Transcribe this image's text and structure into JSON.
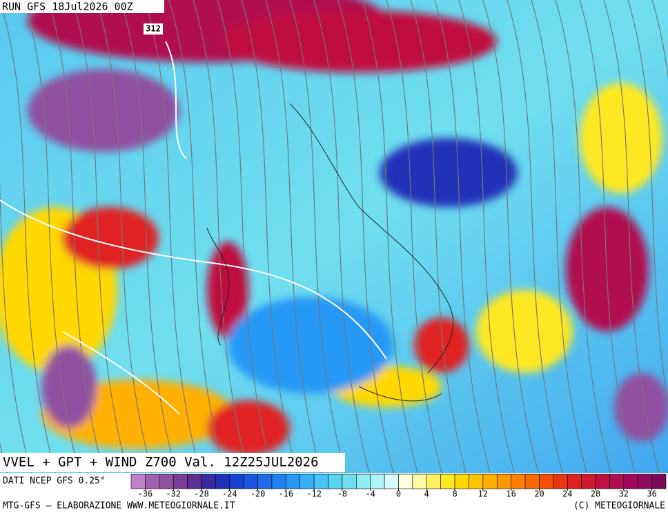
{
  "header": {
    "run": "RUN GFS 18Jul2026 00Z"
  },
  "map": {
    "contour_label": "312"
  },
  "footer": {
    "title": "VVEL + GPT + WIND Z700 Val. 12Z25JUL2026",
    "source": "DATI NCEP GFS 0.25°",
    "left_credit": "MTG-GFS – ELABORAZIONE WWW.METEOGIORNALE.IT",
    "right_credit": "(C) METEOGIORNALE"
  },
  "colorbar": {
    "range": [
      -38,
      38
    ],
    "colors": [
      "#c080c8",
      "#a060b0",
      "#9050a0",
      "#7a3d96",
      "#5a3090",
      "#3a2aa0",
      "#2030b8",
      "#1a40d0",
      "#1a55e0",
      "#1e6ae8",
      "#2080f0",
      "#2898f5",
      "#38b0f8",
      "#48c4f8",
      "#58d4f0",
      "#70e0f0",
      "#90ecf4",
      "#b0f4f8",
      "#d8fcfc",
      "#ffffe0",
      "#fff8a0",
      "#fff060",
      "#ffe820",
      "#ffd800",
      "#ffc400",
      "#ffb000",
      "#ff9800",
      "#ff8000",
      "#f86800",
      "#f05000",
      "#e83810",
      "#e02020",
      "#d01830",
      "#c01040",
      "#b00c50",
      "#a00858",
      "#900a60",
      "#7a0a55"
    ],
    "ticks": [
      -36,
      -32,
      -28,
      -24,
      -20,
      -16,
      -12,
      -8,
      -4,
      0,
      4,
      8,
      12,
      16,
      20,
      24,
      28,
      32,
      36
    ]
  }
}
